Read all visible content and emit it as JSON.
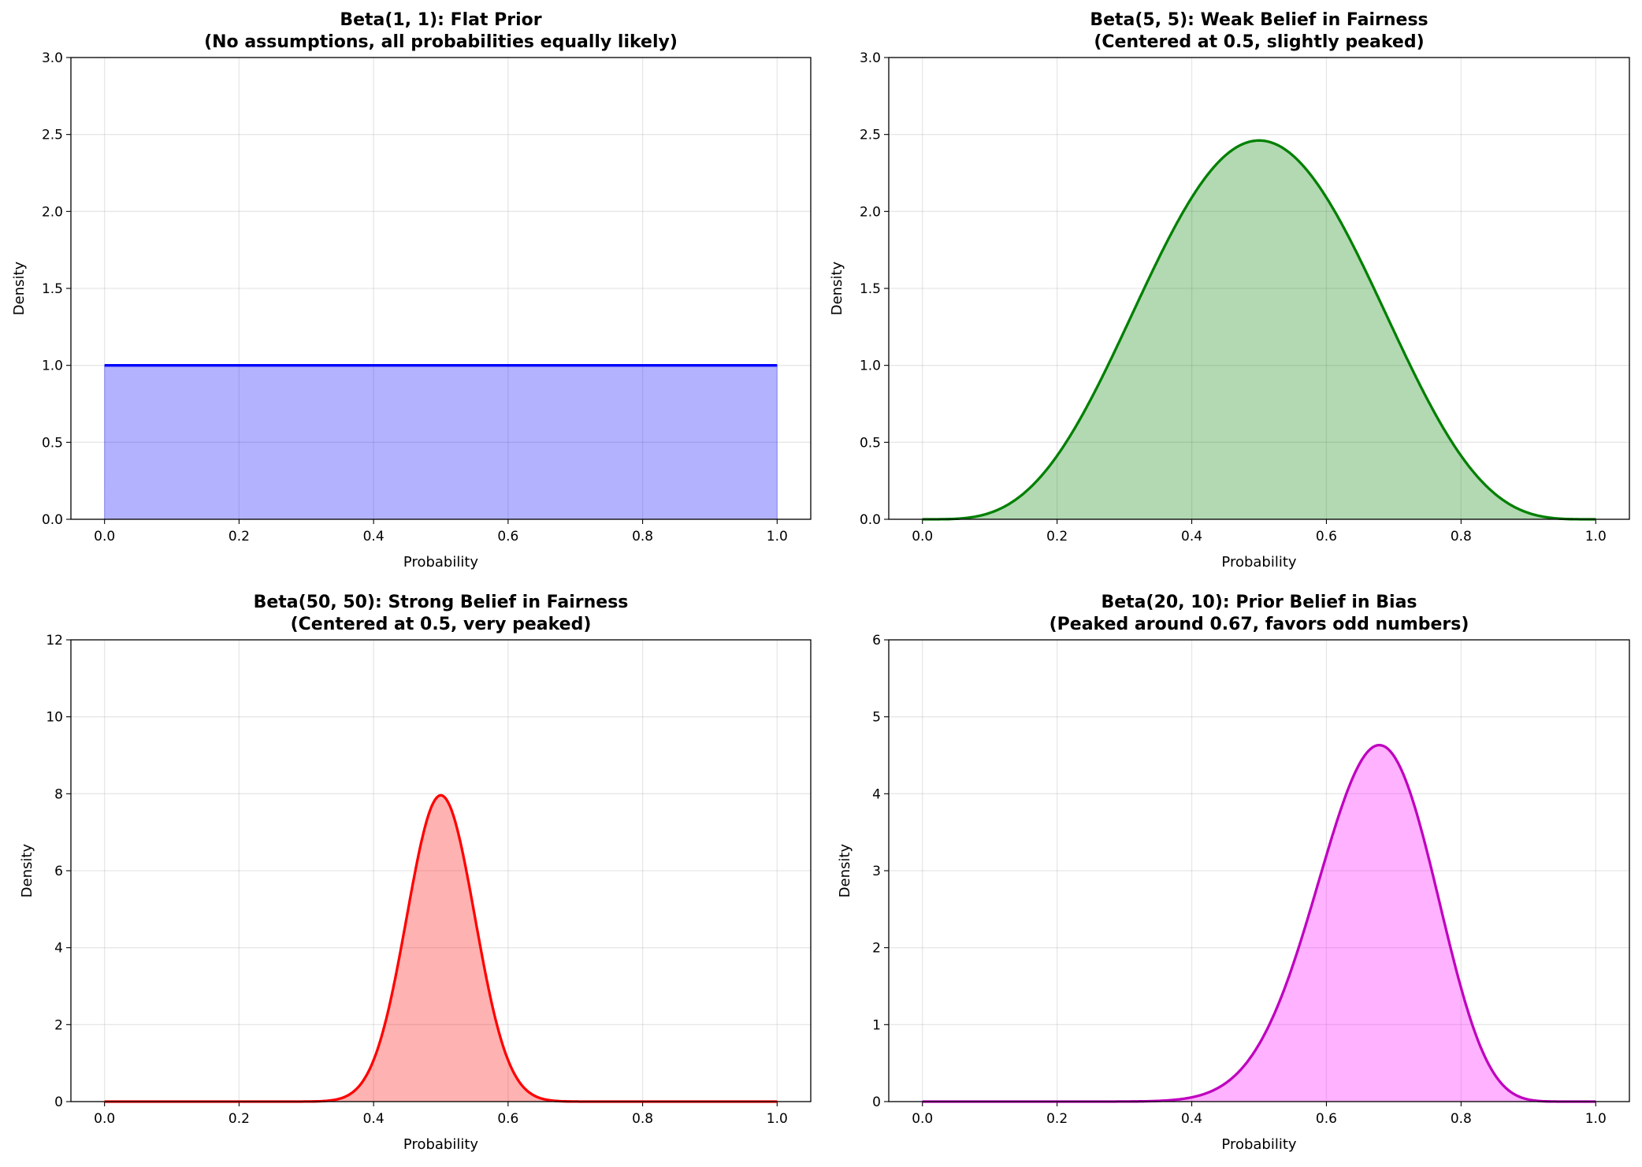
{
  "chart_data": [
    {
      "type": "area",
      "title": "Beta(1, 1): Flat Prior",
      "subtitle": "(No assumptions, all probabilities equally likely)",
      "xlabel": "Probability",
      "ylabel": "Density",
      "xlim": [
        -0.05,
        1.05
      ],
      "ylim": [
        0,
        3
      ],
      "xticks": [
        "0.0",
        "0.2",
        "0.4",
        "0.6",
        "0.8",
        "1.0"
      ],
      "yticks": [
        "0.0",
        "0.5",
        "1.0",
        "1.5",
        "2.0",
        "2.5",
        "3.0"
      ],
      "distribution": {
        "alpha": 1,
        "beta": 1
      },
      "line_color": "#0000ff",
      "fill_color": "#0000ff",
      "fill_alpha": 0.3,
      "grid": true
    },
    {
      "type": "area",
      "title": "Beta(5, 5): Weak Belief in Fairness",
      "subtitle": "(Centered at 0.5, slightly peaked)",
      "xlabel": "Probability",
      "ylabel": "Density",
      "xlim": [
        -0.05,
        1.05
      ],
      "ylim": [
        0,
        3
      ],
      "xticks": [
        "0.0",
        "0.2",
        "0.4",
        "0.6",
        "0.8",
        "1.0"
      ],
      "yticks": [
        "0.0",
        "0.5",
        "1.0",
        "1.5",
        "2.0",
        "2.5",
        "3.0"
      ],
      "distribution": {
        "alpha": 5,
        "beta": 5
      },
      "line_color": "#008000",
      "fill_color": "#008000",
      "fill_alpha": 0.3,
      "grid": true
    },
    {
      "type": "area",
      "title": "Beta(50, 50): Strong Belief in Fairness",
      "subtitle": "(Centered at 0.5, very peaked)",
      "xlabel": "Probability",
      "ylabel": "Density",
      "xlim": [
        -0.05,
        1.05
      ],
      "ylim": [
        0,
        12
      ],
      "xticks": [
        "0.0",
        "0.2",
        "0.4",
        "0.6",
        "0.8",
        "1.0"
      ],
      "yticks": [
        "0",
        "2",
        "4",
        "6",
        "8",
        "10",
        "12"
      ],
      "distribution": {
        "alpha": 50,
        "beta": 50
      },
      "line_color": "#ff0000",
      "fill_color": "#ff0000",
      "fill_alpha": 0.3,
      "grid": true
    },
    {
      "type": "area",
      "title": "Beta(20, 10): Prior Belief in Bias",
      "subtitle": "(Peaked around 0.67, favors odd numbers)",
      "xlabel": "Probability",
      "ylabel": "Density",
      "xlim": [
        -0.05,
        1.05
      ],
      "ylim": [
        0,
        6
      ],
      "xticks": [
        "0.0",
        "0.2",
        "0.4",
        "0.6",
        "0.8",
        "1.0"
      ],
      "yticks": [
        "0",
        "1",
        "2",
        "3",
        "4",
        "5",
        "6"
      ],
      "distribution": {
        "alpha": 20,
        "beta": 10
      },
      "line_color": "#bf00bf",
      "fill_color": "#ff00ff",
      "fill_alpha": 0.3,
      "grid": true
    }
  ]
}
